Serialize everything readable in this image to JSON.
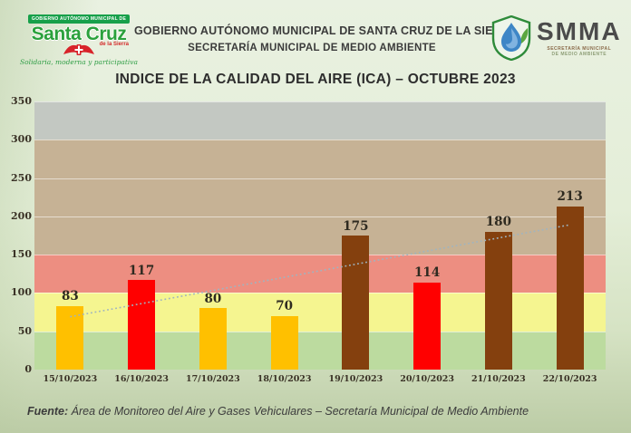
{
  "header": {
    "left_logo": {
      "top_banner": "GOBIERNO AUTÓNOMO MUNICIPAL DE",
      "city": "Santa Cruz",
      "region": "de la Sierra",
      "slogan": "Solidaria, moderna y participativa"
    },
    "org_line1": "GOBIERNO AUTÓNOMO MUNICIPAL DE SANTA CRUZ DE LA SIERRA",
    "org_line2": "SECRETARÍA MUNICIPAL DE MEDIO AMBIENTE",
    "right_logo": {
      "acronym": "SMMA",
      "sub_line1": "SECRETARÍA MUNICIPAL",
      "sub_line2": "DE MEDIO AMBIENTE"
    }
  },
  "title": "INDICE DE LA CALIDAD DEL AIRE (ICA) – OCTUBRE 2023",
  "chart_data": {
    "type": "bar",
    "title": "INDICE DE LA CALIDAD DEL AIRE (ICA) – OCTUBRE 2023",
    "categories": [
      "15/10/2023",
      "16/10/2023",
      "17/10/2023",
      "18/10/2023",
      "19/10/2023",
      "20/10/2023",
      "21/10/2023",
      "22/10/2023"
    ],
    "values": [
      83,
      117,
      80,
      70,
      175,
      114,
      180,
      213
    ],
    "bar_colors": [
      "#FFC000",
      "#FF0000",
      "#FFC000",
      "#FFC000",
      "#84400E",
      "#FF0000",
      "#84400E",
      "#84400E"
    ],
    "xlabel": "",
    "ylabel": "",
    "ylim": [
      0,
      350
    ],
    "yticks": [
      0,
      50,
      100,
      150,
      200,
      250,
      300,
      350
    ],
    "grid": true,
    "legend": false,
    "background_bands": [
      {
        "from": 0,
        "to": 50,
        "color": "#bcdb9f"
      },
      {
        "from": 50,
        "to": 100,
        "color": "#f5f590"
      },
      {
        "from": 100,
        "to": 150,
        "color": "#ed8e81"
      },
      {
        "from": 150,
        "to": 300,
        "color": "#c6b295"
      },
      {
        "from": 300,
        "to": 350,
        "color": "#c3c8c2"
      }
    ],
    "trendline": {
      "style": "dotted",
      "color": "#9fb4c0",
      "start_value": 69,
      "end_value": 189
    }
  },
  "footer": {
    "label": "Fuente:",
    "text": "Área de Monitoreo del Aire y Gases Vehiculares – Secretaría Municipal de Medio Ambiente"
  }
}
